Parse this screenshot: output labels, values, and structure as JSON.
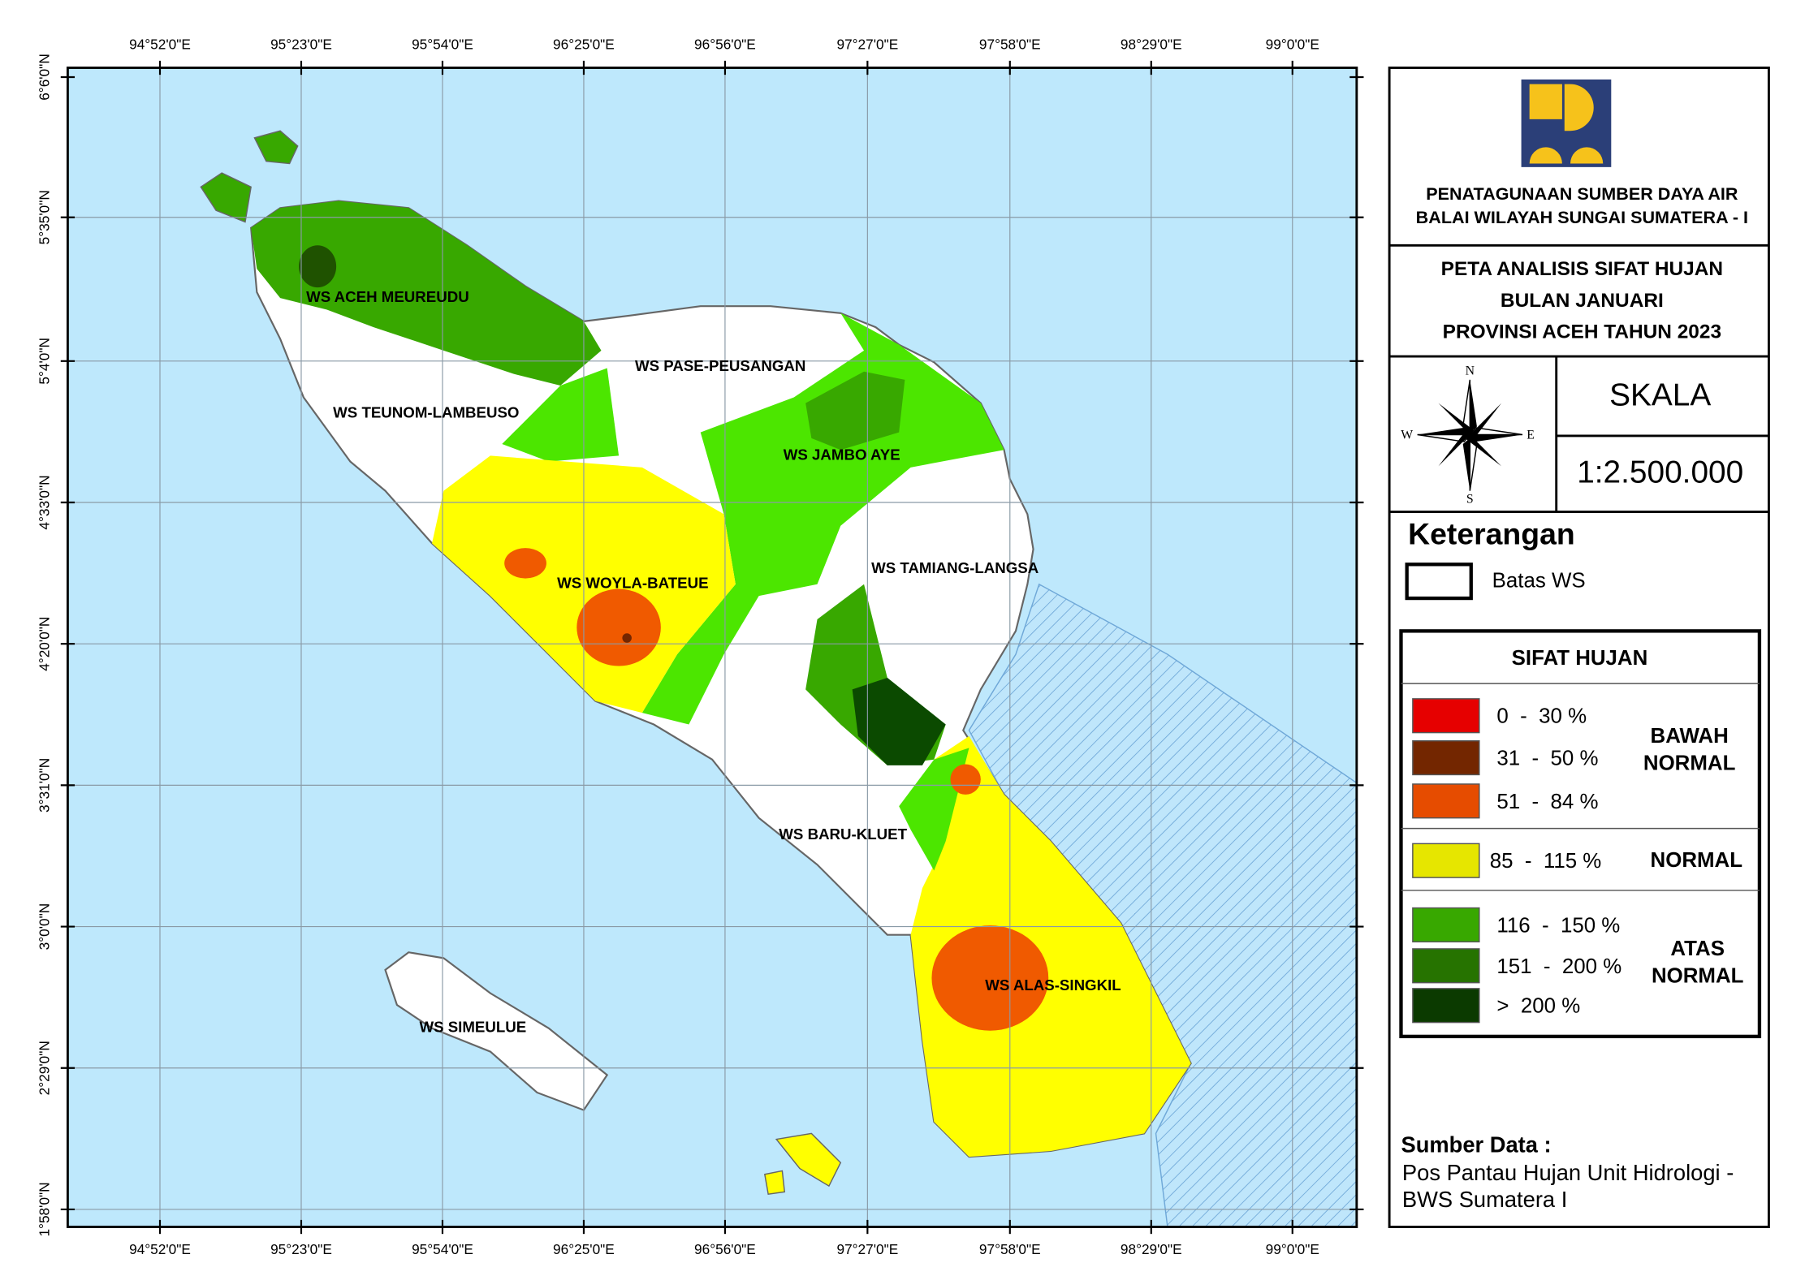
{
  "map": {
    "lon_labels": [
      "94°52'0\"E",
      "95°23'0\"E",
      "95°54'0\"E",
      "96°25'0\"E",
      "96°56'0\"E",
      "97°27'0\"E",
      "97°58'0\"E",
      "98°29'0\"E",
      "99°0'0\"E"
    ],
    "lat_labels": [
      "6°6'0\"N",
      "5°35'0\"N",
      "5°4'0\"N",
      "4°33'0\"N",
      "4°20'0\"N",
      "3°31'0\"N",
      "3°0'0\"N",
      "2°29'0\"N",
      "1°58'0\"N"
    ],
    "region_labels": [
      "WS ACEH MEUREUDU",
      "WS PASE-PEUSANGAN",
      "WS TEUNOM-LAMBEUSO",
      "WS JAMBO AYE",
      "WS WOYLA-BATEUE",
      "WS TAMIANG-LANGSA",
      "WS BARU-KLUET",
      "WS ALAS-SINGKIL",
      "WS SIMEULUE"
    ]
  },
  "legend": {
    "agency": [
      "PENATAGUNAAN SUMBER DAYA AIR",
      "BALAI WILAYAH SUNGAI SUMATERA - I"
    ],
    "title": [
      "PETA ANALISIS SIFAT HUJAN",
      "BULAN JANUARI",
      "PROVINSI ACEH TAHUN 2023"
    ],
    "compass": [
      "N",
      "E",
      "S",
      "W"
    ],
    "scale_heading": "SKALA",
    "scale": "1:2.500.000",
    "keterangan": "Keterangan",
    "boundary": "Batas WS",
    "sifat_title": "SIFAT HUJAN",
    "classes": [
      {
        "label": "0  -  30 %",
        "color": "#e60000"
      },
      {
        "label": "31  -  50 %",
        "color": "#732600"
      },
      {
        "label": "51  -  84 %",
        "color": "#e64c00"
      },
      {
        "label": "85  -  115 %",
        "color": "#e6e600"
      },
      {
        "label": "116  -  150 %",
        "color": "#38a800"
      },
      {
        "label": "151  -  200 %",
        "color": "#267300"
      },
      {
        "label": ">  200 %",
        "color": "#0b3a00"
      }
    ],
    "groups": [
      [
        "BAWAH",
        "NORMAL"
      ],
      [
        "NORMAL"
      ],
      [
        "ATAS",
        "NORMAL"
      ]
    ],
    "source_title": "Sumber Data :",
    "source": [
      "Pos Pantau Hujan Unit Hidrologi -",
      "BWS Sumatera I"
    ]
  }
}
